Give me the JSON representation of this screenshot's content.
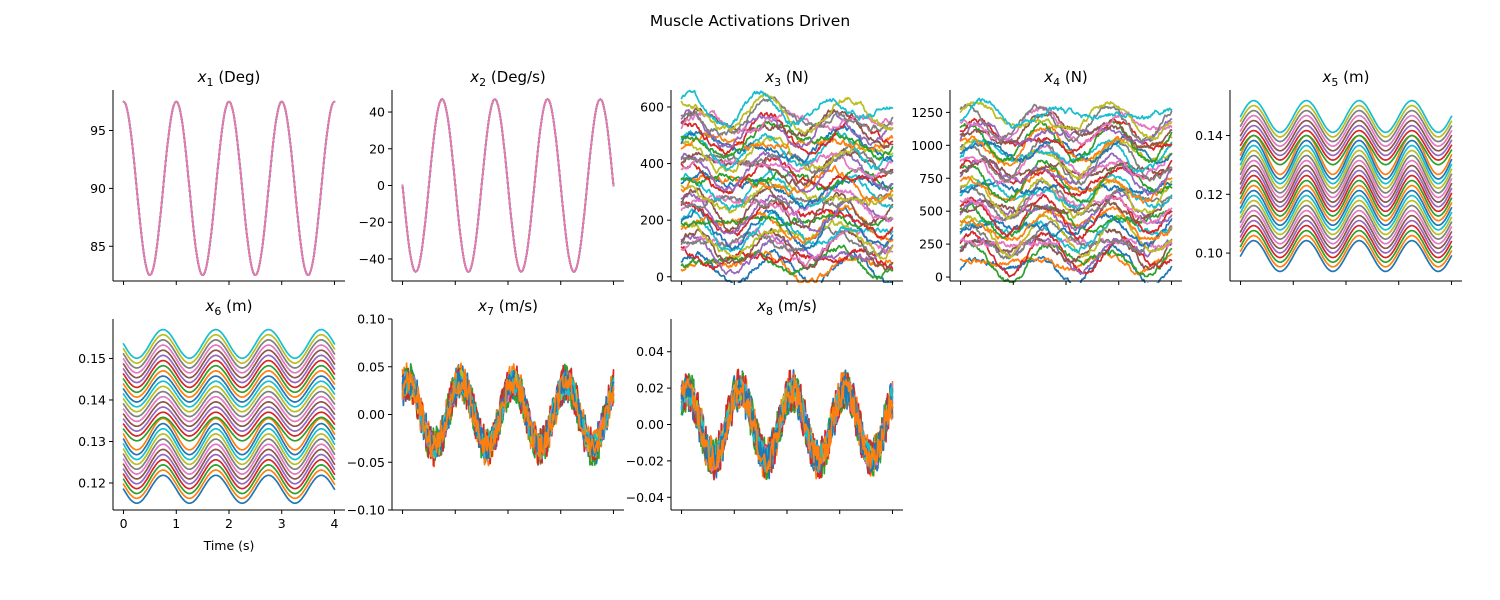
{
  "figure": {
    "title": "Muscle Activations Driven"
  },
  "palette": [
    "#1f77b4",
    "#ff7f0e",
    "#2ca02c",
    "#d62728",
    "#9467bd",
    "#8c564b",
    "#e377c2",
    "#7f7f7f",
    "#bcbd22",
    "#17becf"
  ],
  "chart_data": [
    {
      "id": "x1",
      "type": "line",
      "title_var": "x",
      "title_sub": "1",
      "title_unit": " (Deg)",
      "xlabel": "",
      "xlim": [
        -0.2,
        4.2
      ],
      "ylim": [
        82.0,
        98.5
      ],
      "xticks": [
        0,
        1,
        2,
        3,
        4
      ],
      "xtick_labels_shown": false,
      "yticks": [
        85,
        90,
        95
      ],
      "ytick_labels": [
        "85",
        "90",
        "95"
      ],
      "gen": {
        "kind": "identical",
        "n": 30,
        "offset": 90,
        "amp": 7.5,
        "freq": 1.0,
        "phase": 1.5708,
        "noise": 0,
        "drift": 0
      }
    },
    {
      "id": "x2",
      "type": "line",
      "title_var": "x",
      "title_sub": "2",
      "title_unit": " (Deg/s)",
      "xlabel": "",
      "xlim": [
        -0.2,
        4.2
      ],
      "ylim": [
        -52,
        52
      ],
      "xticks": [
        0,
        1,
        2,
        3,
        4
      ],
      "xtick_labels_shown": false,
      "yticks": [
        -40,
        -20,
        0,
        20,
        40
      ],
      "ytick_labels": [
        "−40",
        "−20",
        "0",
        "20",
        "40"
      ],
      "gen": {
        "kind": "identical",
        "n": 30,
        "offset": 0,
        "amp": -47,
        "freq": 1.0,
        "phase": 0,
        "noise": 0,
        "drift": 0
      }
    },
    {
      "id": "x3",
      "type": "line",
      "title_var": "x",
      "title_sub": "3",
      "title_unit": " (N)",
      "xlabel": "",
      "xlim": [
        -0.2,
        4.2
      ],
      "ylim": [
        -15,
        660
      ],
      "xticks": [
        0,
        1,
        2,
        3,
        4
      ],
      "xtick_labels_shown": false,
      "yticks": [
        0,
        200,
        400,
        600
      ],
      "ytick_labels": [
        "0",
        "200",
        "400",
        "600"
      ],
      "gen": {
        "kind": "spread",
        "n": 40,
        "offset_min": 25,
        "offset_max": 590,
        "amp": 28,
        "freq": 0.7,
        "phase": 0.6,
        "noise": 14,
        "drift": 35
      }
    },
    {
      "id": "x4",
      "type": "line",
      "title_var": "x",
      "title_sub": "4",
      "title_unit": " (N)",
      "xlabel": "",
      "xlim": [
        -0.2,
        4.2
      ],
      "ylim": [
        -30,
        1420
      ],
      "xticks": [
        0,
        1,
        2,
        3,
        4
      ],
      "xtick_labels_shown": false,
      "yticks": [
        0,
        250,
        500,
        750,
        1000,
        1250
      ],
      "ytick_labels": [
        "0",
        "250",
        "500",
        "750",
        "1000",
        "1250"
      ],
      "gen": {
        "kind": "spread",
        "n": 40,
        "offset_min": 80,
        "offset_max": 1230,
        "amp": 75,
        "freq": 0.75,
        "phase": 0.4,
        "noise": 28,
        "drift": 70
      }
    },
    {
      "id": "x5",
      "type": "line",
      "title_var": "x",
      "title_sub": "5",
      "title_unit": " (m)",
      "xlabel": "",
      "xlim": [
        -0.2,
        4.2
      ],
      "ylim": [
        0.0905,
        0.1555
      ],
      "xticks": [
        0,
        1,
        2,
        3,
        4
      ],
      "xtick_labels_shown": false,
      "yticks": [
        0.1,
        0.12,
        0.14
      ],
      "ytick_labels": [
        "0.10",
        "0.12",
        "0.14"
      ],
      "gen": {
        "kind": "spread",
        "n": 30,
        "offset_min": 0.099,
        "offset_max": 0.1465,
        "amp": 0.0058,
        "freq": 1.0,
        "phase": 0,
        "noise": 0,
        "drift": 0
      }
    },
    {
      "id": "x6",
      "type": "line",
      "title_var": "x",
      "title_sub": "6",
      "title_unit": " (m)",
      "xlabel": "Time (s)",
      "xlim": [
        -0.2,
        4.2
      ],
      "ylim": [
        0.1135,
        0.1595
      ],
      "xticks": [
        0,
        1,
        2,
        3,
        4
      ],
      "xtick_labels_shown": true,
      "xtick_labels": [
        "0",
        "1",
        "2",
        "3",
        "4"
      ],
      "yticks": [
        0.12,
        0.13,
        0.14,
        0.15
      ],
      "ytick_labels": [
        "0.12",
        "0.13",
        "0.14",
        "0.15"
      ],
      "gen": {
        "kind": "spread",
        "n": 30,
        "offset_min": 0.1185,
        "offset_max": 0.1535,
        "amp": -0.0033,
        "freq": 1.0,
        "phase": 0,
        "noise": 0,
        "drift": 0
      }
    },
    {
      "id": "x7",
      "type": "line",
      "title_var": "x",
      "title_sub": "7",
      "title_unit": " (m/s)",
      "xlabel": "",
      "xlim": [
        -0.2,
        4.2
      ],
      "ylim": [
        -0.1,
        0.1
      ],
      "xticks": [
        0,
        1,
        2,
        3,
        4
      ],
      "xtick_labels_shown": false,
      "yticks": [
        -0.1,
        -0.05,
        0.0,
        0.05,
        0.1
      ],
      "ytick_labels": [
        "−0.10",
        "−0.05",
        "0.00",
        "0.05",
        "0.10"
      ],
      "gen": {
        "kind": "noisy",
        "n": 12,
        "offset": 0,
        "amp": 0.034,
        "freq": 1.0,
        "phase": 0.9,
        "noise": 0.013,
        "drift": 0
      }
    },
    {
      "id": "x8",
      "type": "line",
      "title_var": "x",
      "title_sub": "8",
      "title_unit": " (m/s)",
      "xlabel": "",
      "xlim": [
        -0.2,
        4.2
      ],
      "ylim": [
        -0.047,
        0.058
      ],
      "xticks": [
        0,
        1,
        2,
        3,
        4
      ],
      "xtick_labels_shown": false,
      "yticks": [
        -0.04,
        -0.02,
        0.0,
        0.02,
        0.04
      ],
      "ytick_labels": [
        "−0.04",
        "−0.02",
        "0.00",
        "0.02",
        "0.04"
      ],
      "gen": {
        "kind": "noisy",
        "n": 12,
        "offset": 0,
        "amp": 0.019,
        "freq": 1.0,
        "phase": 0.9,
        "noise": 0.0075,
        "drift": 0
      }
    }
  ]
}
